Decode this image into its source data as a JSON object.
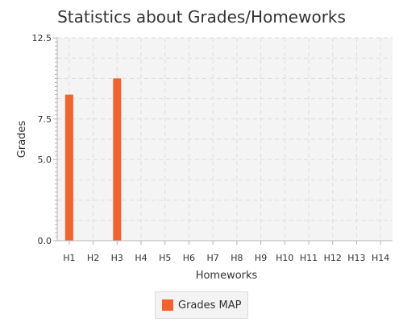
{
  "colors": {
    "series": "#f3622d",
    "plot_background": "#f4f4f4",
    "grid": "#dddddd",
    "axis": "#b5b5b5"
  },
  "chart_data": {
    "type": "bar",
    "title": "Statistics about Grades/Homeworks",
    "xlabel": "Homeworks",
    "ylabel": "Grades",
    "categories": [
      "H1",
      "H2",
      "H3",
      "H4",
      "H5",
      "H6",
      "H7",
      "H8",
      "H9",
      "H10",
      "H11",
      "H12",
      "H13",
      "H14"
    ],
    "series": [
      {
        "name": "Grades MAP",
        "values": [
          9.0,
          0,
          10.0,
          0,
          0,
          0,
          0,
          0,
          0,
          0,
          0,
          0,
          0,
          0
        ]
      }
    ],
    "ylim": [
      0,
      12.5
    ],
    "yticks": [
      0.0,
      5.0,
      7.5,
      12.5
    ],
    "ytick_labels": [
      "0.0",
      "5.0",
      "7.5",
      "12.5"
    ],
    "grid": true,
    "legend_position": "bottom"
  }
}
